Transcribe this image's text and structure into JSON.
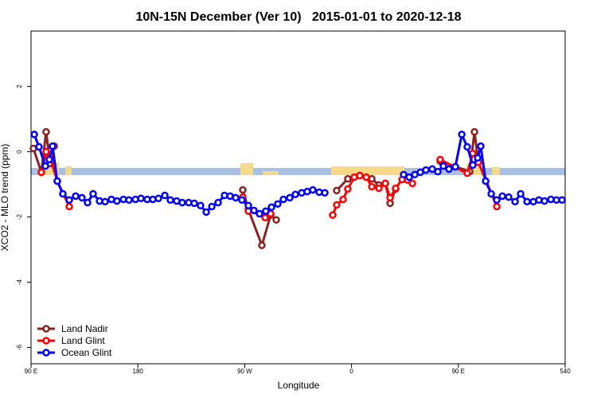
{
  "chart_data": {
    "type": "line",
    "title": "10N-15N December (Ver 10)   2015-01-01 to 2020-12-18",
    "x_label": "Longitude",
    "y_label": "XCO2 - MLO trend (ppm)",
    "xlim": [
      90,
      540
    ],
    "ylim": [
      -6.5,
      3.7
    ],
    "xticks": [
      {
        "value": 90,
        "label": "90 E"
      },
      180,
      {
        "value": 270,
        "label": "90 W"
      },
      {
        "value": 360,
        "label": "0"
      },
      {
        "value": 450,
        "label": "90 E"
      },
      540
    ],
    "yticks": [
      -6,
      -4,
      -2,
      0,
      2
    ],
    "legend": "bottom-left",
    "series": [
      {
        "name": "Land Nadir",
        "color": "#8b2323",
        "x": [
          92.0,
          98.7,
          102.7,
          106.1,
          109.5,
          200,
          268.4,
          273.1,
          284.5,
          291.9,
          296.6,
          360,
          347.5,
          356.9,
          367.0,
          377.1,
          383.1,
          388.5,
          392.5,
          397.2,
          420,
          434.7,
          459.6,
          463.6,
          466.9
        ],
        "values": [
          0.1,
          -0.63,
          0.61,
          -0.36,
          0.17,
          null,
          -1.17,
          -1.77,
          -2.87,
          -1.94,
          -2.09,
          null,
          -1.19,
          -0.83,
          -0.73,
          -0.83,
          -1.02,
          -0.97,
          -1.58,
          -1.14,
          null,
          -0.29,
          -0.61,
          0.61,
          -0.32
        ]
      },
      {
        "name": "Land Glint",
        "color": "#ff0000",
        "x": [
          98.7,
          102.7,
          106.1,
          112.1,
          122.2,
          200,
          268.4,
          273.1,
          282.5,
          287.2,
          291.9,
          330,
          344.2,
          347.5,
          352.9,
          356.9,
          362.3,
          367.0,
          372.4,
          377.1,
          383.1,
          388.5,
          392.5,
          397.2,
          402.6,
          407.2,
          411.3,
          420,
          434.7,
          457.5,
          462.2,
          466.9,
          482.4
        ],
        "values": [
          -0.63,
          0.0,
          -0.17,
          -0.9,
          -1.68,
          null,
          -1.39,
          -1.82,
          -1.9,
          -2.02,
          -1.9,
          null,
          -1.94,
          -1.63,
          -1.46,
          -1.14,
          -0.78,
          -0.73,
          -0.78,
          -1.07,
          -1.12,
          -0.97,
          -1.41,
          -1.12,
          -0.85,
          -0.87,
          -0.97,
          null,
          -0.24,
          -0.66,
          -0.05,
          -0.32,
          -1.68
        ]
      },
      {
        "name": "Ocean Glint",
        "color": "#0000ff",
        "x": [
          92.7,
          96.7,
          102.1,
          105.4,
          108.1,
          112.1,
          116.8,
          122.2,
          127.6,
          132.9,
          137.6,
          142.3,
          147.7,
          152.4,
          157.7,
          162.4,
          167.8,
          172.5,
          177.9,
          182.6,
          187.9,
          192.6,
          197.3,
          202.7,
          207.4,
          212.7,
          217.4,
          222.8,
          227.5,
          232.8,
          237.6,
          242.3,
          247.6,
          253.0,
          257.7,
          262.4,
          267.7,
          273.1,
          277.8,
          282.5,
          287.8,
          292.6,
          297.9,
          302.6,
          308.0,
          312.7,
          318.0,
          322.7,
          327.4,
          332.8,
          337.5,
          370,
          403.9,
          408.6,
          413.3,
          418.0,
          422.7,
          428.0,
          432.7,
          437.4,
          442.1,
          447.5,
          452.9,
          457.5,
          462.2,
          466.3,
          468.9,
          473.0,
          477.7,
          482.4,
          487.1,
          492.4,
          497.8,
          502.5,
          507.9,
          513.2,
          517.9,
          522.6,
          528.0,
          532.7,
          537.4
        ],
        "values": [
          0.53,
          0.15,
          -0.44,
          -0.24,
          0.17,
          -0.9,
          -1.29,
          -1.48,
          -1.36,
          -1.41,
          -1.56,
          -1.29,
          -1.51,
          -1.53,
          -1.46,
          -1.51,
          -1.46,
          -1.48,
          -1.46,
          -1.43,
          -1.46,
          -1.46,
          -1.43,
          -1.34,
          -1.48,
          -1.51,
          -1.56,
          -1.56,
          -1.58,
          -1.65,
          -1.85,
          -1.68,
          -1.56,
          -1.34,
          -1.36,
          -1.41,
          -1.48,
          -1.65,
          -1.8,
          -1.9,
          -1.82,
          -1.7,
          -1.6,
          -1.46,
          -1.41,
          -1.31,
          -1.26,
          -1.22,
          -1.17,
          -1.24,
          -1.26,
          null,
          -0.7,
          -0.78,
          -0.7,
          -0.63,
          -0.56,
          -0.53,
          -0.61,
          -0.44,
          -0.53,
          -0.46,
          0.53,
          0.15,
          -0.41,
          -0.19,
          0.17,
          -0.9,
          -1.29,
          -1.48,
          -1.36,
          -1.39,
          -1.53,
          -1.29,
          -1.53,
          -1.53,
          -1.48,
          -1.51,
          -1.46,
          -1.48,
          -1.48
        ]
      }
    ]
  }
}
